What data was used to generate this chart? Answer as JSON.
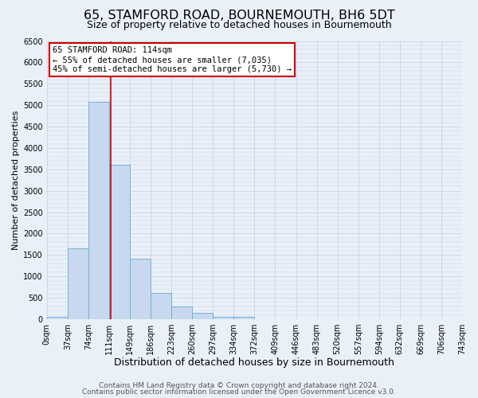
{
  "title": "65, STAMFORD ROAD, BOURNEMOUTH, BH6 5DT",
  "subtitle": "Size of property relative to detached houses in Bournemouth",
  "xlabel": "Distribution of detached houses by size in Bournemouth",
  "ylabel": "Number of detached properties",
  "bin_edges": [
    0,
    37,
    74,
    111,
    148,
    185,
    222,
    259,
    296,
    333,
    370,
    407,
    444,
    481,
    518,
    555,
    592,
    629,
    666,
    703,
    740
  ],
  "bar_heights": [
    50,
    1650,
    5080,
    3600,
    1420,
    610,
    300,
    150,
    50,
    50,
    0,
    0,
    0,
    0,
    0,
    0,
    0,
    0,
    0,
    0
  ],
  "bar_color": "#c8d8ee",
  "bar_edge_color": "#6aaad4",
  "property_line_x": 114,
  "property_line_color": "#cc0000",
  "ylim": [
    0,
    6500
  ],
  "yticks": [
    0,
    500,
    1000,
    1500,
    2000,
    2500,
    3000,
    3500,
    4000,
    4500,
    5000,
    5500,
    6000,
    6500
  ],
  "xtick_labels": [
    "0sqm",
    "37sqm",
    "74sqm",
    "111sqm",
    "149sqm",
    "186sqm",
    "223sqm",
    "260sqm",
    "297sqm",
    "334sqm",
    "372sqm",
    "409sqm",
    "446sqm",
    "483sqm",
    "520sqm",
    "557sqm",
    "594sqm",
    "632sqm",
    "669sqm",
    "706sqm",
    "743sqm"
  ],
  "grid_color": "#c8d4e8",
  "background_color": "#eaf0f8",
  "annotation_title": "65 STAMFORD ROAD: 114sqm",
  "annotation_line1": "← 55% of detached houses are smaller (7,035)",
  "annotation_line2": "45% of semi-detached houses are larger (5,730) →",
  "annotation_box_color": "#ffffff",
  "annotation_box_edge": "#cc0000",
  "footer1": "Contains HM Land Registry data © Crown copyright and database right 2024.",
  "footer2": "Contains public sector information licensed under the Open Government Licence v3.0.",
  "title_fontsize": 11.5,
  "subtitle_fontsize": 9,
  "xlabel_fontsize": 9,
  "ylabel_fontsize": 8,
  "tick_fontsize": 7,
  "annotation_fontsize": 7.5,
  "footer_fontsize": 6.5
}
